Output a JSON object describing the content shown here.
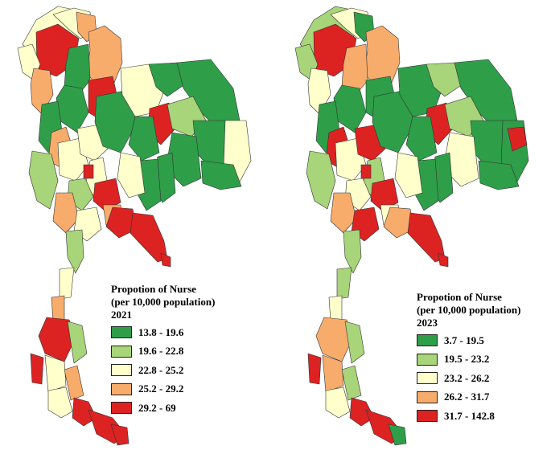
{
  "palette": [
    "#2e9e48",
    "#a8d47a",
    "#ffffcc",
    "#f8ac6b",
    "#dd2222"
  ],
  "maps": [
    {
      "legend": {
        "title_line1": "Propotion of Nurse",
        "title_line2": "(per 10,000 population)",
        "year": "2021",
        "ranges": [
          "13.8 - 19.6",
          "19.6 - 22.8",
          "22.8 - 25.2",
          "25.2 - 29.2",
          "29.2 - 69"
        ]
      }
    },
    {
      "legend": {
        "title_line1": "Propotion of Nurse",
        "title_line2": "(per 10,000 population)",
        "year": "2023",
        "ranges": [
          "3.7 - 19.5",
          "19.5 - 23.2",
          "23.2 - 26.2",
          "26.2 - 31.7",
          "31.7 - 142.8"
        ]
      }
    }
  ]
}
